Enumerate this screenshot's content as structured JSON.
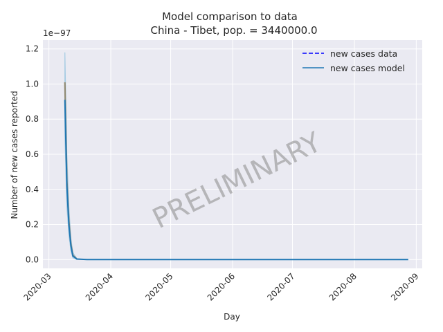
{
  "chart_data": {
    "type": "line",
    "title": "Model comparison to data",
    "subtitle": "China - Tibet, pop. = 3440000.0",
    "xlabel": "Day",
    "ylabel": "Number of new cases reported",
    "y_scale_note": "1e−97",
    "watermark": "PRELIMINARY",
    "x_tick_labels": [
      "2020-03",
      "2020-04",
      "2020-05",
      "2020-06",
      "2020-07",
      "2020-08",
      "2020-09"
    ],
    "x_tick_dates": [
      "2020-03-01",
      "2020-04-01",
      "2020-05-01",
      "2020-06-01",
      "2020-07-01",
      "2020-08-01",
      "2020-09-01"
    ],
    "y_tick_labels": [
      "0.0",
      "0.2",
      "0.4",
      "0.6",
      "0.8",
      "1.0",
      "1.2"
    ],
    "y_ticks": [
      0.0,
      0.2,
      0.4,
      0.6,
      0.8,
      1.0,
      1.2
    ],
    "xlim": [
      "2020-02-27",
      "2020-09-04"
    ],
    "ylim": [
      -0.05,
      1.25
    ],
    "grid": true,
    "legend_position": "top-right",
    "series": [
      {
        "name": "new cases data",
        "style": "dashed",
        "color": "#0000ff",
        "x": [],
        "y": []
      },
      {
        "name": "new cases model",
        "style": "solid",
        "color": "#1f77b4",
        "x": [
          "2020-03-09",
          "2020-03-10",
          "2020-03-11",
          "2020-03-12",
          "2020-03-13",
          "2020-03-15",
          "2020-03-20",
          "2020-04-01",
          "2020-05-01",
          "2020-06-01",
          "2020-07-01",
          "2020-08-01",
          "2020-08-28"
        ],
        "y": [
          0.91,
          0.42,
          0.2,
          0.08,
          0.02,
          0.003,
          0.0,
          0.0,
          0.0,
          0.0,
          0.0,
          0.0,
          0.0
        ]
      }
    ],
    "uncertainty_band": {
      "color": "#a6cbe3",
      "x": [
        "2020-03-09",
        "2020-03-10",
        "2020-03-11",
        "2020-03-12",
        "2020-03-13",
        "2020-03-15",
        "2020-03-20",
        "2020-08-28"
      ],
      "upper": [
        1.18,
        0.6,
        0.3,
        0.12,
        0.04,
        0.005,
        0.0,
        0.0
      ],
      "lower": [
        0.7,
        0.3,
        0.14,
        0.05,
        0.01,
        0.001,
        0.0,
        0.0
      ]
    },
    "model_median_trace": {
      "color": "#8c7f5f",
      "x": [
        "2020-03-09",
        "2020-03-10",
        "2020-03-11",
        "2020-03-12",
        "2020-03-13",
        "2020-03-15"
      ],
      "y": [
        1.01,
        0.45,
        0.22,
        0.09,
        0.025,
        0.003
      ]
    }
  }
}
